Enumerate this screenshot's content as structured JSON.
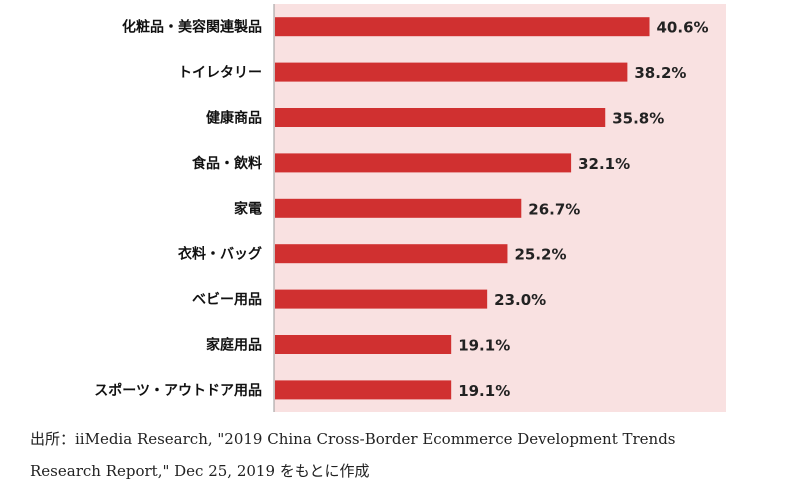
{
  "chart_data": {
    "type": "bar",
    "orientation": "horizontal",
    "categories": [
      "化粧品・美容関連製品",
      "トイレタリー",
      "健康商品",
      "食品・飲料",
      "家電",
      "衣料・バッグ",
      "ベビー用品",
      "家庭用品",
      "スポーツ・アウトドア用品"
    ],
    "values": [
      40.6,
      38.2,
      35.8,
      32.1,
      26.7,
      25.2,
      23.0,
      19.1,
      19.1
    ],
    "value_labels": [
      "40.6%",
      "38.2%",
      "35.8%",
      "32.1%",
      "26.7%",
      "25.2%",
      "23.0%",
      "19.1%",
      "19.1%"
    ],
    "unit": "%",
    "xlim": [
      0,
      49
    ],
    "grid": false,
    "bar_color": "#d03030",
    "plot_background": "#f9e1e1"
  },
  "source": {
    "line1": "出所：iiMedia Research, \"2019 China Cross-Border Ecommerce Development Trends",
    "line2": "Research Report,\" Dec 25, 2019 をもとに作成"
  }
}
